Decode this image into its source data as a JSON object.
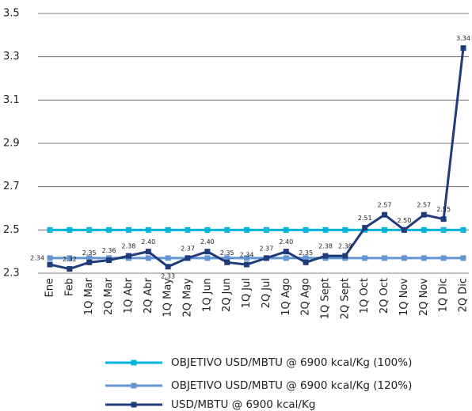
{
  "chart_data": {
    "type": "line",
    "categories": [
      "Ene",
      "Feb",
      "1Q Mar",
      "2Q Mar",
      "1Q Abr",
      "2Q Abr",
      "1Q May",
      "2Q May",
      "1Q Jun",
      "2Q Jun",
      "1Q Jul",
      "2Q Jul",
      "1Q Ago",
      "2Q Ago",
      "1Q Sept",
      "2Q Sept",
      "1Q Oct",
      "2Q Oct",
      "1Q Nov",
      "2Q Nov",
      "1Q Dic",
      "2Q Dic"
    ],
    "series": [
      {
        "name": "OBJETIVO USD/MBTU @ 6900 kcal/Kg (100%)",
        "color": "#00b4dc",
        "values": [
          2.5,
          2.5,
          2.5,
          2.5,
          2.5,
          2.5,
          2.5,
          2.5,
          2.5,
          2.5,
          2.5,
          2.5,
          2.5,
          2.5,
          2.5,
          2.5,
          2.5,
          2.5,
          2.5,
          2.5,
          2.5,
          2.5
        ]
      },
      {
        "name": "OBJETIVO USD/MBTU @ 6900 kcal/Kg (120%)",
        "color": "#6395d2",
        "values": [
          2.37,
          2.37,
          2.37,
          2.37,
          2.37,
          2.37,
          2.37,
          2.37,
          2.37,
          2.37,
          2.37,
          2.37,
          2.37,
          2.37,
          2.37,
          2.37,
          2.37,
          2.37,
          2.37,
          2.37,
          2.37,
          2.37
        ]
      },
      {
        "name": "USD/MBTU @ 6900 kcal/Kg",
        "color": "#1f3b7a",
        "values": [
          2.34,
          2.32,
          2.35,
          2.36,
          2.38,
          2.4,
          2.33,
          2.37,
          2.4,
          2.35,
          2.34,
          2.37,
          2.4,
          2.35,
          2.38,
          2.38,
          2.51,
          2.57,
          2.5,
          2.57,
          2.55,
          3.34
        ],
        "value_labels": [
          "2.34",
          "2.32",
          "2.35",
          "2.36",
          "2.38",
          "2.40",
          "2.33",
          "2.37",
          "2.40",
          "2.35",
          "2.34",
          "2.37",
          "2.40",
          "2.35",
          "2.38",
          "2.38",
          "2.51",
          "2.57",
          "2.50",
          "2.57",
          "2.55",
          "3.34"
        ]
      }
    ],
    "ylim": [
      2.3,
      3.5
    ],
    "yticks": [
      2.3,
      2.5,
      2.7,
      2.9,
      3.1,
      3.3,
      3.5
    ],
    "grid": true
  }
}
